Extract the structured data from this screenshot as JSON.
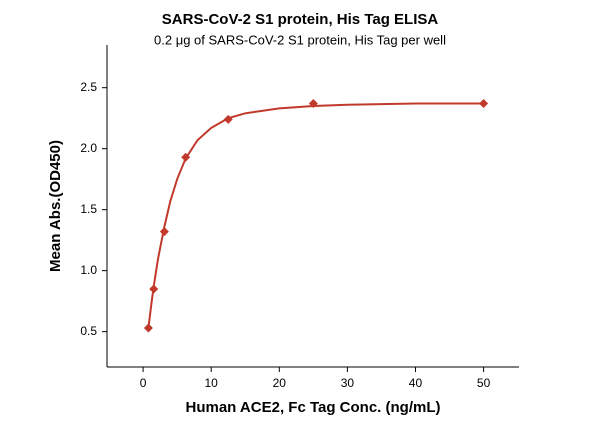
{
  "chart_data": {
    "type": "scatter",
    "title": "SARS-CoV-2 S1 protein, His Tag ELISA",
    "subtitle": "0.2 μg of SARS-CoV-2 S1 protein, His Tag per well",
    "x_label": "Human ACE2, Fc Tag Conc. (ng/mL)",
    "y_label": "Mean Abs.(OD450)",
    "x": [
      0.78,
      1.56,
      3.125,
      6.25,
      12.5,
      25,
      50
    ],
    "values": [
      0.53,
      0.85,
      1.32,
      1.93,
      2.24,
      2.37,
      2.37
    ],
    "color": "#c0392b",
    "fit_curve": {
      "x": [
        0.78,
        1.2,
        1.56,
        2.2,
        3.125,
        4,
        5,
        6.25,
        8,
        10,
        12.5,
        15,
        20,
        25,
        30,
        40,
        50
      ],
      "y": [
        0.53,
        0.72,
        0.87,
        1.1,
        1.36,
        1.57,
        1.75,
        1.92,
        2.07,
        2.17,
        2.25,
        2.29,
        2.33,
        2.35,
        2.36,
        2.37,
        2.37
      ]
    },
    "xlim": [
      -5.3,
      55.2
    ],
    "ylim": [
      0.21,
      2.85
    ],
    "xticks": [
      0,
      10,
      20,
      30,
      40,
      50
    ],
    "yticks": [
      0.5,
      {
        "value": 1,
        "label": "1.0"
      },
      1.5,
      {
        "value": 2,
        "label": "2.0"
      },
      2.5
    ]
  }
}
